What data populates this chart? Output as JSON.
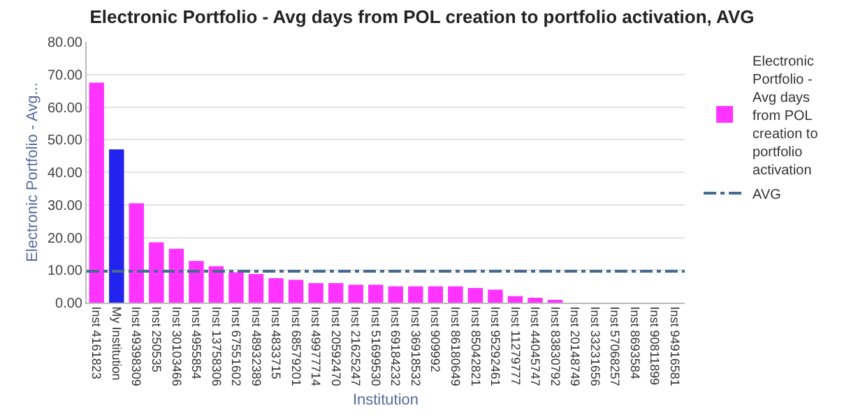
{
  "chart_data": {
    "type": "bar",
    "title": "Electronic Portfolio - Avg days from POL creation to portfolio activation, AVG",
    "xlabel": "Institution",
    "ylabel": "Electronic Portfolio - Avg...",
    "categories": [
      "Inst 4161823",
      "My Institution",
      "Inst 49398309",
      "Inst 250535",
      "Inst 30103466",
      "Inst 4955854",
      "Inst 13758306",
      "Inst 67551602",
      "Inst 48932389",
      "Inst 4833715",
      "Inst 68579201",
      "Inst 49977714",
      "Inst 20592470",
      "Inst 21625247",
      "Inst 51699530",
      "Inst 69184232",
      "Inst 36918532",
      "Inst 909992",
      "Inst 86180649",
      "Inst 85042821",
      "Inst 95292461",
      "Inst 11279777",
      "Inst 44045747",
      "Inst 83830792",
      "Inst 20148749",
      "Inst 33231656",
      "Inst 57068257",
      "Inst 8693584",
      "Inst 90811899",
      "Inst 94916581"
    ],
    "series": [
      {
        "name": "Electronic Portfolio - Avg days from POL creation to portfolio activation",
        "color": "#ff33ff",
        "colors": [
          "#ff33ff",
          "#2323f0",
          "#ff33ff",
          "#ff33ff",
          "#ff33ff",
          "#ff33ff",
          "#ff33ff",
          "#ff33ff",
          "#ff33ff",
          "#ff33ff",
          "#ff33ff",
          "#ff33ff",
          "#ff33ff",
          "#ff33ff",
          "#ff33ff",
          "#ff33ff",
          "#ff33ff",
          "#ff33ff",
          "#ff33ff",
          "#ff33ff",
          "#ff33ff",
          "#ff33ff",
          "#ff33ff",
          "#ff33ff",
          "#ff33ff",
          "#ff33ff",
          "#ff33ff",
          "#ff33ff",
          "#ff33ff",
          "#ff33ff"
        ],
        "values": [
          67.5,
          47,
          30.5,
          18.5,
          16.5,
          12.8,
          11.2,
          9.3,
          8.8,
          7.5,
          7,
          6,
          6,
          5.5,
          5.5,
          5,
          5,
          5,
          5,
          4.5,
          4,
          2,
          1.5,
          0.5,
          0,
          0,
          0,
          0,
          0,
          0
        ]
      }
    ],
    "ref_lines": [
      {
        "axis": "y",
        "value": 9.6,
        "label": "AVG",
        "color": "#456b8f",
        "line_style": "dashdot"
      }
    ],
    "ylim": [
      0,
      80
    ],
    "yticks": [
      {
        "value": 0,
        "label": "0.00"
      },
      {
        "value": 10,
        "label": "10.00"
      },
      {
        "value": 20,
        "label": "20.00"
      },
      {
        "value": 30,
        "label": "30.00"
      },
      {
        "value": 40,
        "label": "40.00"
      },
      {
        "value": 50,
        "label": "50.00"
      },
      {
        "value": 60,
        "label": "60.00"
      },
      {
        "value": 70,
        "label": "70.00"
      },
      {
        "value": 80,
        "label": "80.00"
      }
    ],
    "grid": "y",
    "legend": "right"
  }
}
